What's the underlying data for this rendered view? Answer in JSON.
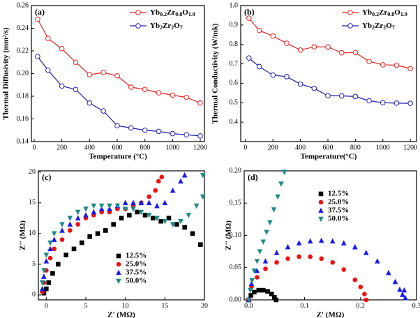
{
  "chart_data": [
    {
      "type": "line",
      "panel_label": "(a)",
      "xlabel": "Temperature (°C)",
      "ylabel": "Thermal Diffusivity (mm²/s)",
      "x": [
        25,
        100,
        200,
        300,
        400,
        500,
        600,
        700,
        800,
        900,
        1000,
        1100,
        1200
      ],
      "xlim": [
        -20,
        1230
      ],
      "xticks": [
        0,
        200,
        400,
        600,
        800,
        1000,
        1200
      ],
      "ylim": [
        0.14,
        0.26
      ],
      "yticks": [
        0.14,
        0.16,
        0.18,
        {
          "value": 0.2,
          "label": "0.20"
        },
        0.22,
        0.24,
        0.26
      ],
      "legend": "upper right",
      "series": [
        {
          "name": "Yb0.2Zr0.8O1.9",
          "color": "#e8201c",
          "marker": "circle",
          "values": [
            0.248,
            0.231,
            0.222,
            0.21,
            0.199,
            0.201,
            0.198,
            0.188,
            0.186,
            0.183,
            0.181,
            0.179,
            0.174
          ]
        },
        {
          "name": "Yb2Zr2O7",
          "color": "#1c1ca8",
          "marker": "circle",
          "values": [
            0.215,
            0.203,
            0.189,
            0.186,
            0.174,
            0.167,
            0.154,
            0.152,
            0.15,
            0.149,
            0.147,
            0.146,
            0.145
          ]
        }
      ]
    },
    {
      "type": "line",
      "panel_label": "(b)",
      "xlabel": "Temperature(°C)",
      "ylabel": "Thermal Conductivity (W/mk)",
      "x": [
        25,
        100,
        200,
        300,
        400,
        500,
        600,
        700,
        800,
        900,
        1000,
        1100,
        1200
      ],
      "xlim": [
        -35,
        1245
      ],
      "xticks": [
        0,
        200,
        400,
        600,
        800,
        1000,
        1200
      ],
      "ylim": [
        0.3,
        1.0
      ],
      "yticks": [
        0.4,
        0.5,
        0.6,
        0.7,
        0.8,
        0.9,
        {
          "value": 1.0,
          "label": "1.0"
        }
      ],
      "legend": "upper right",
      "series": [
        {
          "name": "Yb0.2Zr0.8O1.9",
          "color": "#e8201c",
          "marker": "circle",
          "values": [
            0.935,
            0.872,
            0.843,
            0.806,
            0.771,
            0.788,
            0.787,
            0.757,
            0.758,
            0.712,
            0.695,
            0.693,
            0.676
          ]
        },
        {
          "name": "Yb2Zr2O7",
          "color": "#1c1ca8",
          "marker": "circle",
          "values": [
            0.73,
            0.686,
            0.642,
            0.634,
            0.596,
            0.574,
            0.536,
            0.535,
            0.532,
            0.51,
            0.5,
            0.498,
            0.497
          ]
        }
      ]
    },
    {
      "type": "scatter",
      "panel_label": "(c)",
      "xlabel": "Z' (MΩ)",
      "ylabel": "Z'' (MΩ)",
      "xlim": [
        -1,
        20
      ],
      "xticks": [
        0,
        5,
        10,
        15,
        20
      ],
      "ylim": [
        -0.8,
        20.2
      ],
      "yticks": [
        0,
        5,
        10,
        15,
        20
      ],
      "legend": "lower center",
      "series": [
        {
          "name": "12.5%",
          "color": "#000000",
          "marker": "square",
          "x": [
            -0.3,
            0,
            0.3,
            0.8,
            1.5,
            2.5,
            3.5,
            4.5,
            5.5,
            6.5,
            7.5,
            8.5,
            9.5,
            10.5,
            11.5,
            12.5,
            13.5,
            14.5,
            15.5,
            16.5,
            17.5,
            18.5,
            19.5
          ],
          "values": [
            0.3,
            1,
            2,
            3.5,
            5,
            6.5,
            7.5,
            8.5,
            9.5,
            10,
            10.5,
            11.5,
            12.5,
            13,
            13.5,
            13,
            12.5,
            12,
            12.5,
            11.5,
            11,
            10,
            8.2
          ]
        },
        {
          "name": "25.0%",
          "color": "#ee1111",
          "marker": "circle",
          "x": [
            -0.5,
            -0.3,
            0,
            0.5,
            1,
            2,
            3,
            4,
            5,
            6,
            7,
            8,
            9,
            10,
            11,
            12,
            13,
            13.8,
            14.2,
            14.6
          ],
          "values": [
            0.5,
            2,
            4,
            6,
            7.5,
            9,
            10.5,
            11.5,
            12.5,
            13,
            13.5,
            13.5,
            14,
            14,
            14.5,
            15,
            16,
            17,
            18.5,
            19.2
          ]
        },
        {
          "name": "37.5%",
          "color": "#1a1aee",
          "marker": "triangle-up",
          "x": [
            -0.5,
            -0.3,
            0,
            0.5,
            1,
            2,
            3,
            4,
            5,
            6,
            7,
            8,
            9,
            10,
            11,
            12,
            13,
            14,
            15,
            16,
            17,
            17.5
          ],
          "values": [
            1,
            3,
            5.5,
            7.5,
            9,
            10.5,
            11.5,
            12.5,
            13,
            13.5,
            14,
            14,
            14.5,
            15,
            15,
            15,
            15,
            14.5,
            15,
            17,
            18.5,
            19.5
          ]
        },
        {
          "name": "50.0%",
          "color": "#1f8a8a",
          "marker": "triangle-down",
          "x": [
            -0.5,
            -0.3,
            0,
            0.5,
            1,
            2,
            3,
            4,
            5,
            6,
            7,
            8,
            9,
            10,
            11,
            12,
            13,
            14,
            15,
            16,
            17,
            18,
            19,
            19.8,
            19.8
          ],
          "values": [
            2,
            4,
            6.5,
            8.5,
            10,
            11.5,
            12.5,
            13.5,
            14,
            14.5,
            14.5,
            14.5,
            14.5,
            14,
            14,
            13.5,
            13,
            12.5,
            12,
            11.5,
            12,
            13,
            14.5,
            16,
            19.5
          ]
        }
      ]
    },
    {
      "type": "scatter",
      "panel_label": "(d)",
      "xlabel": "Z' (MΩ)",
      "ylabel": "Z'' (MΩ)",
      "xlim": [
        -0.008,
        0.3
      ],
      "xticks": [
        {
          "value": 0,
          "label": "0.0"
        },
        0.1,
        0.2,
        0.3
      ],
      "ylim": [
        0,
        0.2
      ],
      "yticks": [
        {
          "value": 0,
          "label": "0.00"
        },
        {
          "value": 0.05,
          "label": "0.05"
        },
        {
          "value": 0.1,
          "label": "0.10"
        },
        {
          "value": 0.15,
          "label": "0.15"
        },
        {
          "value": 0.2,
          "label": "0.20"
        }
      ],
      "legend": "upper center",
      "series": [
        {
          "name": "12.5%",
          "color": "#000000",
          "marker": "square",
          "x": [
            0,
            0.004,
            0.01,
            0.018,
            0.026,
            0.034,
            0.041,
            0.046,
            0.049
          ],
          "values": [
            0,
            0.007,
            0.012,
            0.015,
            0.015,
            0.013,
            0.009,
            0.004,
            0
          ]
        },
        {
          "name": "25.0%",
          "color": "#ee1111",
          "marker": "circle",
          "x": [
            0,
            0.005,
            0.015,
            0.03,
            0.05,
            0.07,
            0.09,
            0.11,
            0.13,
            0.15,
            0.17,
            0.19,
            0.2,
            0.207,
            0.21
          ],
          "values": [
            0,
            0.02,
            0.035,
            0.048,
            0.058,
            0.064,
            0.067,
            0.067,
            0.064,
            0.058,
            0.047,
            0.031,
            0.02,
            0.009,
            0
          ]
        },
        {
          "name": "37.5%",
          "color": "#1a1aee",
          "marker": "triangle-up",
          "x": [
            0,
            0.005,
            0.015,
            0.03,
            0.05,
            0.07,
            0.09,
            0.11,
            0.13,
            0.15,
            0.17,
            0.19,
            0.21,
            0.23,
            0.25,
            0.262,
            0.27,
            0.275,
            0.278,
            0.28
          ],
          "values": [
            0,
            0.025,
            0.045,
            0.06,
            0.073,
            0.082,
            0.088,
            0.091,
            0.092,
            0.091,
            0.088,
            0.082,
            0.073,
            0.06,
            0.042,
            0.028,
            0.016,
            0.008,
            0.015,
            0.003
          ]
        },
        {
          "name": "50.0%",
          "color": "#1f8a8a",
          "marker": "triangle-down",
          "x": [
            0,
            0.003,
            0.006,
            0.01,
            0.015,
            0.02,
            0.026,
            0.032,
            0.038,
            0.045,
            0.052,
            0.058,
            0.064
          ],
          "values": [
            0,
            0.015,
            0.03,
            0.045,
            0.06,
            0.075,
            0.09,
            0.105,
            0.12,
            0.14,
            0.16,
            0.18,
            0.198
          ]
        }
      ]
    }
  ]
}
